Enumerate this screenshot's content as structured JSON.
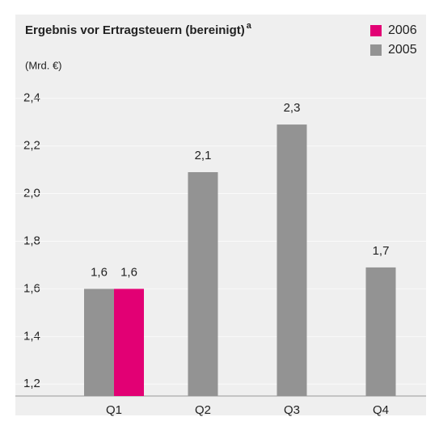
{
  "chart_data": {
    "type": "bar",
    "title": "Ergebnis vor Ertragsteuern (bereinigt)",
    "title_superscript": "a",
    "subtitle": "(Mrd. €)",
    "categories": [
      "Q1",
      "Q2",
      "Q3",
      "Q4"
    ],
    "series": [
      {
        "name": "2006",
        "color": "#e20074",
        "values": [
          1.6,
          null,
          null,
          null
        ],
        "value_labels": [
          "1,6",
          null,
          null,
          null
        ]
      },
      {
        "name": "2005",
        "color": "#939393",
        "values": [
          1.6,
          2.09,
          2.29,
          1.69
        ],
        "value_labels": [
          "1,6",
          "2,1",
          "2,3",
          "1,7"
        ]
      }
    ],
    "ylim": [
      1.15,
      2.46
    ],
    "yticks": [
      {
        "value": 1.2,
        "label": "1,2"
      },
      {
        "value": 1.4,
        "label": "1,4"
      },
      {
        "value": 1.6,
        "label": "1,6"
      },
      {
        "value": 1.8,
        "label": "1,8"
      },
      {
        "value": 2.0,
        "label": "2,0"
      },
      {
        "value": 2.2,
        "label": "2,2"
      },
      {
        "value": 2.4,
        "label": "2,4"
      }
    ],
    "grid": true,
    "legend": "top-right"
  }
}
